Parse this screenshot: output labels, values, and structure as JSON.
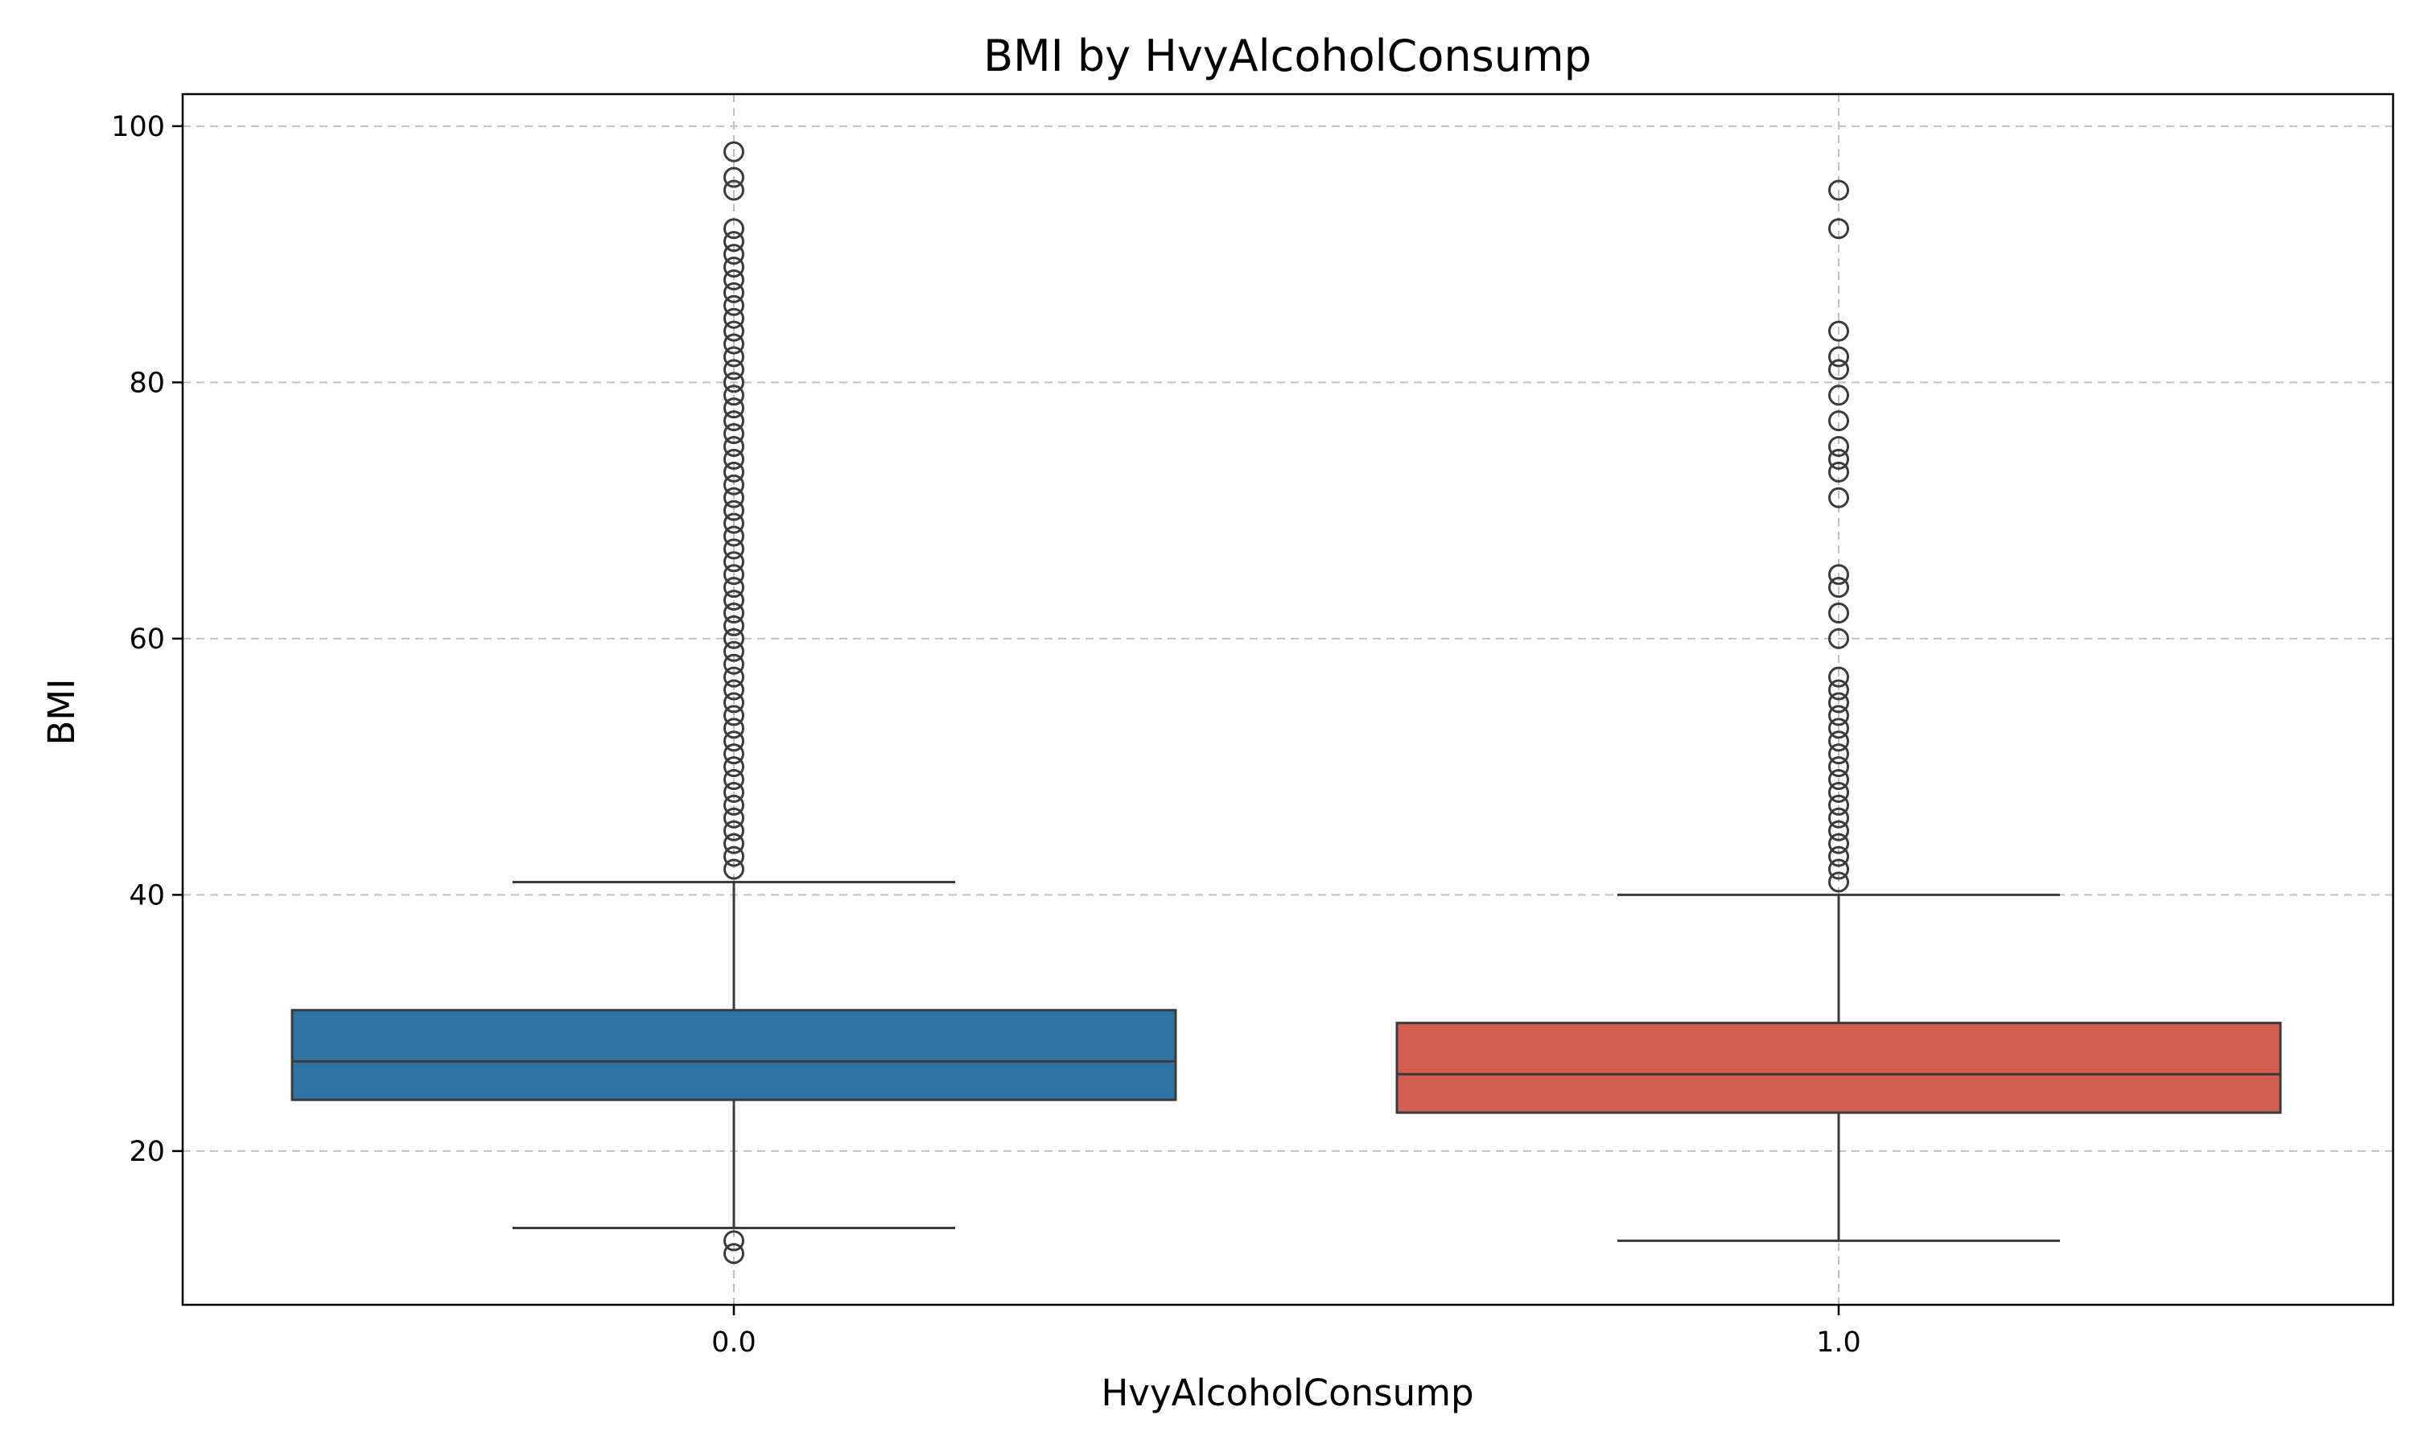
{
  "chart_data": {
    "type": "box",
    "title": "BMI by HvyAlcoholConsump",
    "xlabel": "HvyAlcoholConsump",
    "ylabel": "BMI",
    "categories": [
      "0.0",
      "1.0"
    ],
    "ylim": [
      8,
      102.5
    ],
    "yticks": [
      20,
      40,
      60,
      80,
      100
    ],
    "grid": true,
    "grid_style": "dashed",
    "boxes": [
      {
        "category": "0.0",
        "color": "#2e73a3",
        "whisker_low": 14,
        "q1": 24,
        "median": 27,
        "q3": 31,
        "whisker_high": 41,
        "outliers": [
          12,
          13,
          42,
          43,
          44,
          45,
          46,
          47,
          48,
          49,
          50,
          51,
          52,
          53,
          54,
          55,
          56,
          57,
          58,
          59,
          60,
          61,
          62,
          63,
          64,
          65,
          66,
          67,
          68,
          69,
          70,
          71,
          72,
          73,
          74,
          75,
          76,
          77,
          78,
          79,
          80,
          81,
          82,
          83,
          84,
          85,
          86,
          87,
          88,
          89,
          90,
          91,
          92,
          95,
          96,
          98
        ]
      },
      {
        "category": "1.0",
        "color": "#d35d4f",
        "whisker_low": 13,
        "q1": 23,
        "median": 26,
        "q3": 30,
        "whisker_high": 40,
        "outliers": [
          41,
          42,
          43,
          44,
          45,
          46,
          47,
          48,
          49,
          50,
          51,
          52,
          53,
          54,
          55,
          56,
          57,
          60,
          62,
          64,
          65,
          71,
          73,
          74,
          75,
          77,
          79,
          81,
          82,
          84,
          92,
          95
        ]
      }
    ]
  },
  "style": {
    "grid_color": "#c0c0c0",
    "line_color": "#3b3b3b",
    "frame_color": "#000000"
  }
}
